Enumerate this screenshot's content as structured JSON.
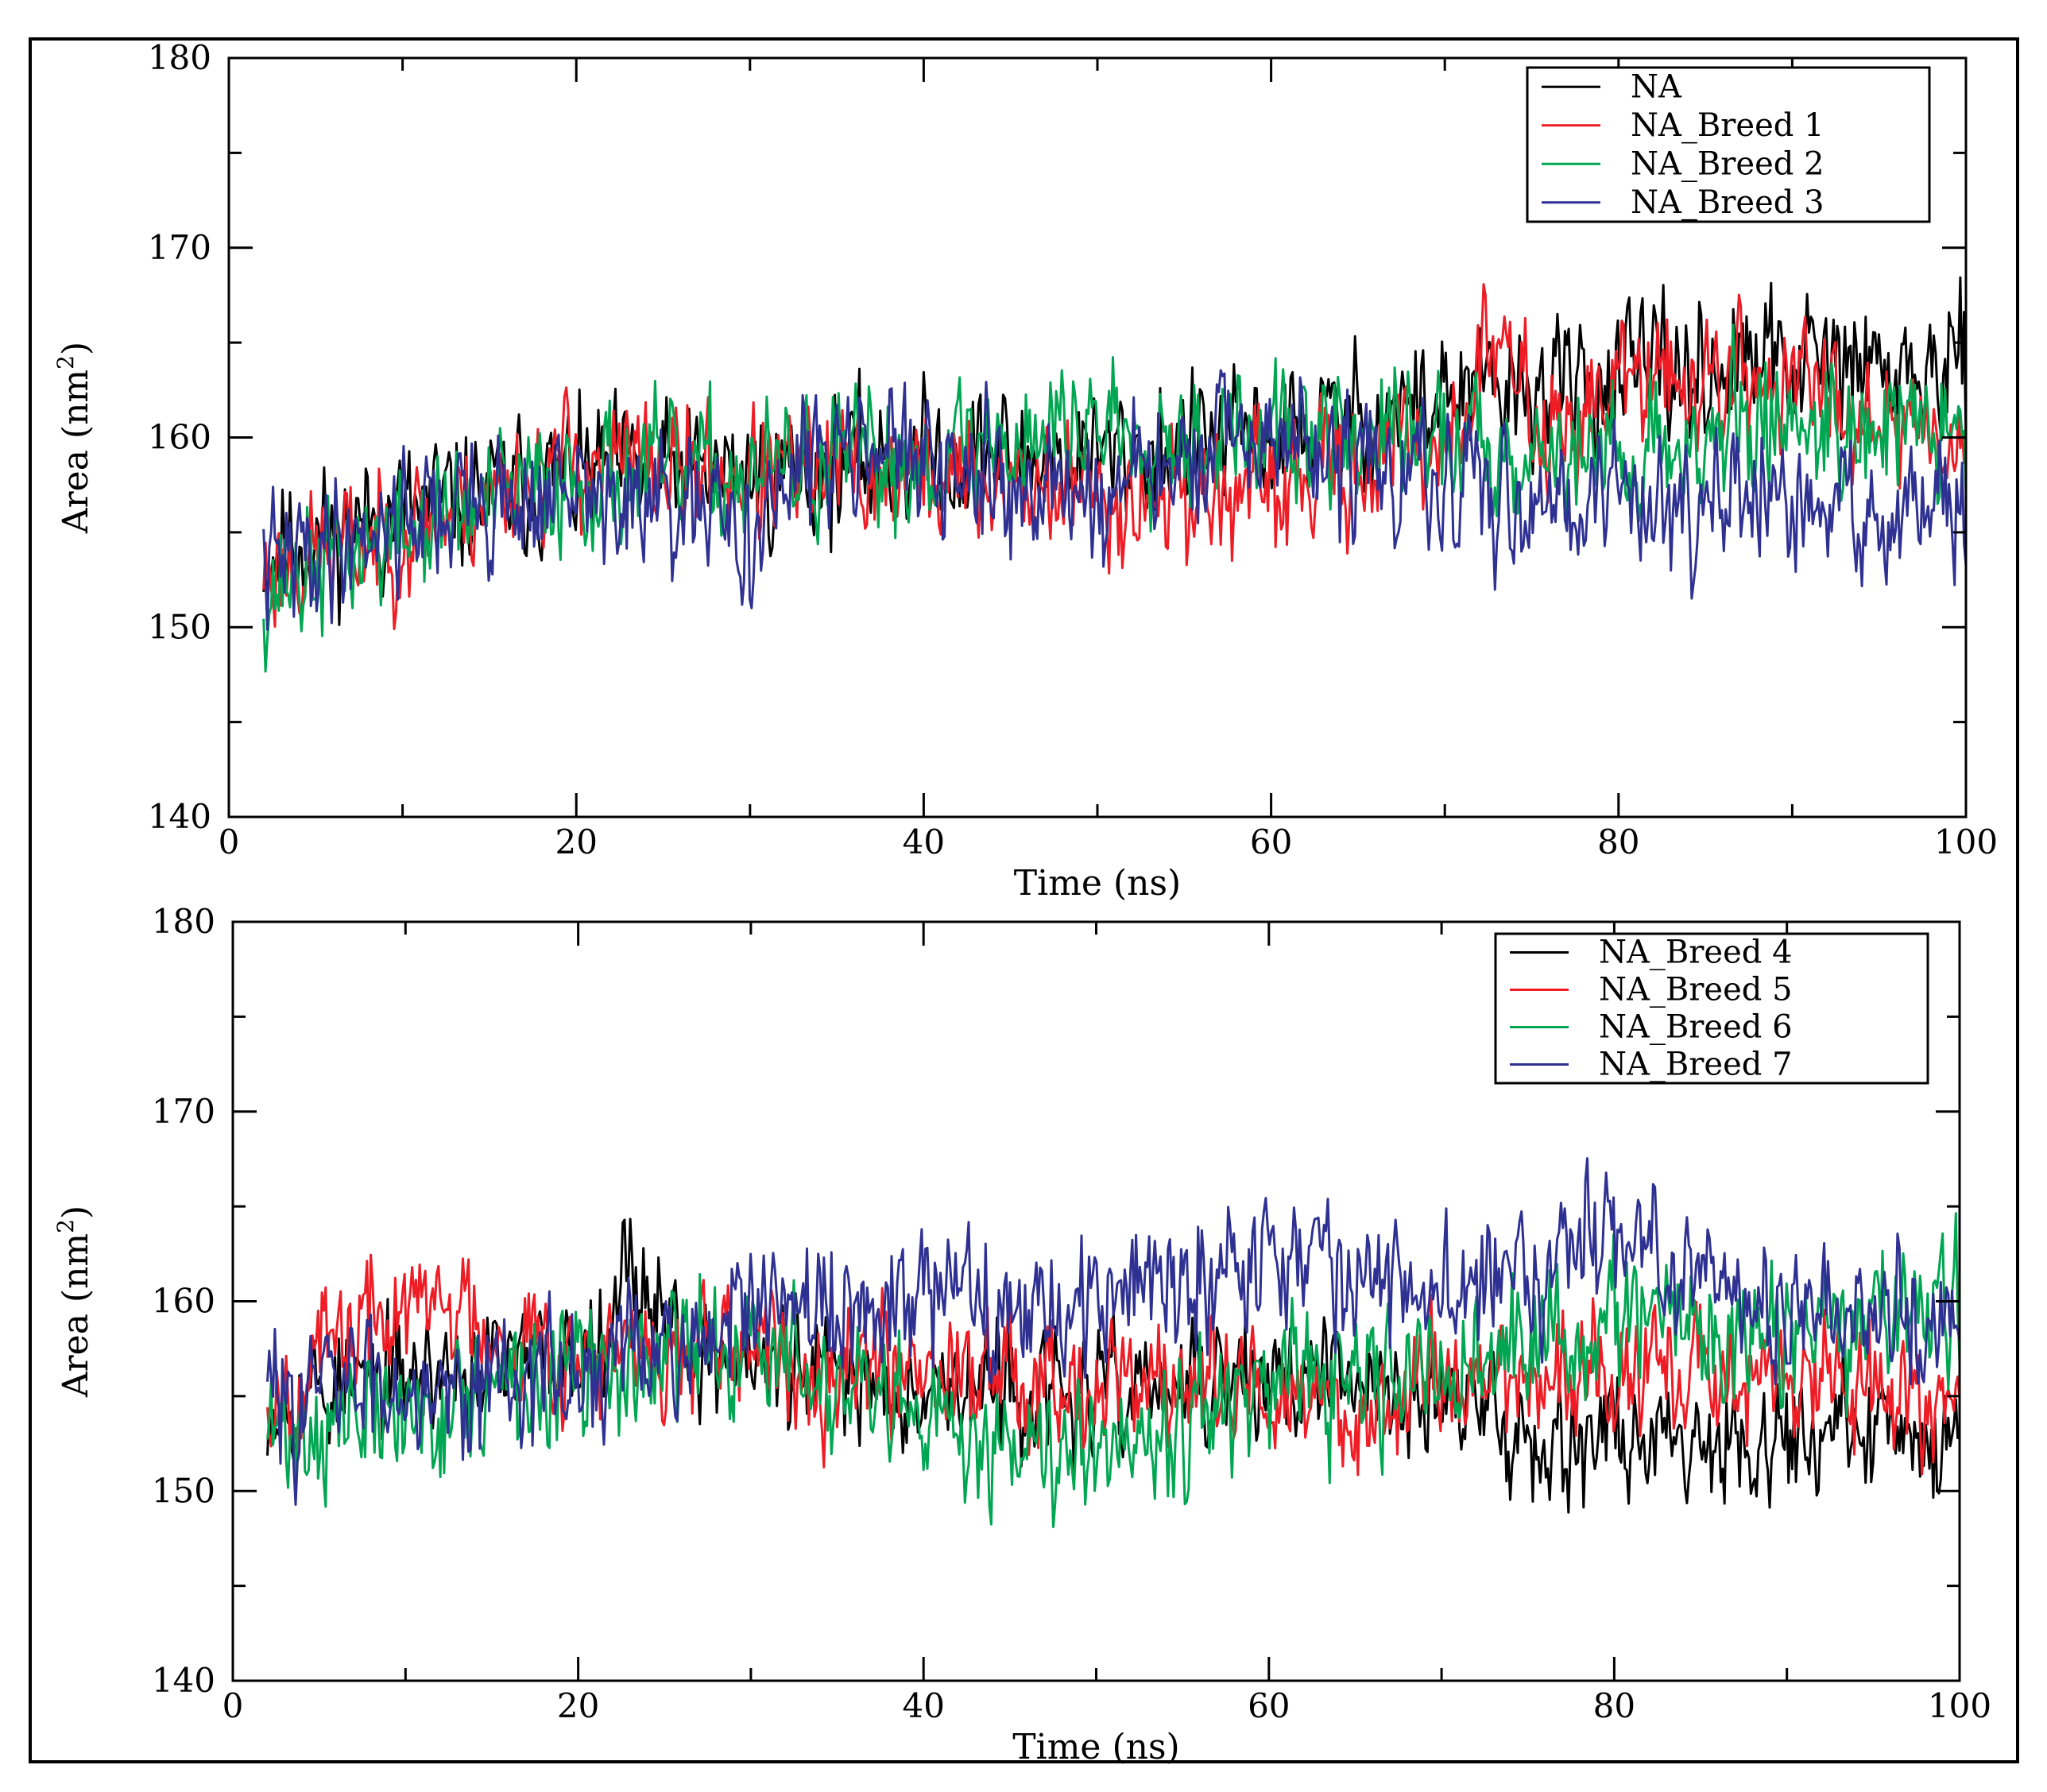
{
  "chart_data": [
    {
      "type": "line",
      "xlabel": "Time (ns)",
      "ylabel_main": "Area (nm",
      "ylabel_sup": "2",
      "ylabel_close": ")",
      "xlim": [
        0,
        100
      ],
      "ylim": [
        140,
        180
      ],
      "x_ticks": [
        "0",
        "20",
        "40",
        "60",
        "80",
        "100"
      ],
      "y_ticks": [
        "140",
        "150",
        "160",
        "170",
        "180"
      ],
      "legend_position": "top-right",
      "series": [
        {
          "name": "NA",
          "color": "#000000",
          "profile": [
            [
              2,
              154
            ],
            [
              10,
              156
            ],
            [
              20,
              158
            ],
            [
              30,
              158
            ],
            [
              40,
              159
            ],
            [
              50,
              159
            ],
            [
              60,
              160
            ],
            [
              70,
              162
            ],
            [
              80,
              163
            ],
            [
              90,
              164
            ],
            [
              100,
              163
            ]
          ],
          "amp": 2.6,
          "seed": 11
        },
        {
          "name": "NA_Breed 1",
          "color": "#ee1c25",
          "profile": [
            [
              2,
              153
            ],
            [
              10,
              155
            ],
            [
              20,
              159
            ],
            [
              30,
              158
            ],
            [
              40,
              158
            ],
            [
              50,
              157
            ],
            [
              60,
              157
            ],
            [
              70,
              160
            ],
            [
              73,
              165
            ],
            [
              76,
              160
            ],
            [
              80,
              163
            ],
            [
              90,
              163
            ],
            [
              100,
              160
            ]
          ],
          "amp": 2.5,
          "seed": 23
        },
        {
          "name": "NA_Breed 2",
          "color": "#00a651",
          "profile": [
            [
              2,
              152
            ],
            [
              10,
              155
            ],
            [
              20,
              158
            ],
            [
              30,
              158
            ],
            [
              40,
              159
            ],
            [
              50,
              161
            ],
            [
              60,
              160
            ],
            [
              70,
              160
            ],
            [
              80,
              159
            ],
            [
              90,
              161
            ],
            [
              100,
              160
            ]
          ],
          "amp": 2.6,
          "seed": 37
        },
        {
          "name": "NA_Breed 3",
          "color": "#2e3192",
          "profile": [
            [
              2,
              153
            ],
            [
              10,
              156
            ],
            [
              20,
              157
            ],
            [
              30,
              155
            ],
            [
              36,
              161
            ],
            [
              40,
              158
            ],
            [
              50,
              157
            ],
            [
              60,
              160
            ],
            [
              70,
              157
            ],
            [
              80,
              157
            ],
            [
              90,
              156
            ],
            [
              100,
              156
            ]
          ],
          "amp": 2.6,
          "seed": 41
        }
      ]
    },
    {
      "type": "line",
      "xlabel": "Time (ns)",
      "ylabel_main": "Area (nm",
      "ylabel_sup": "2",
      "ylabel_close": ")",
      "xlim": [
        0,
        100
      ],
      "ylim": [
        140,
        180
      ],
      "x_ticks": [
        "0",
        "20",
        "40",
        "60",
        "80",
        "100"
      ],
      "y_ticks": [
        "140",
        "150",
        "160",
        "170",
        "180"
      ],
      "legend_position": "top-right",
      "series": [
        {
          "name": "NA_Breed 4",
          "color": "#000000",
          "profile": [
            [
              2,
              155
            ],
            [
              10,
              156
            ],
            [
              20,
              157
            ],
            [
              23,
              162
            ],
            [
              27,
              157
            ],
            [
              35,
              156
            ],
            [
              50,
              155
            ],
            [
              60,
              156
            ],
            [
              70,
              155
            ],
            [
              75,
              153
            ],
            [
              85,
              153
            ],
            [
              100,
              153
            ]
          ],
          "amp": 2.3,
          "seed": 53
        },
        {
          "name": "NA_Breed 5",
          "color": "#ee1c25",
          "profile": [
            [
              2,
              155
            ],
            [
              8,
              159
            ],
            [
              12,
              160
            ],
            [
              20,
              157
            ],
            [
              30,
              157
            ],
            [
              40,
              157
            ],
            [
              50,
              156
            ],
            [
              60,
              155
            ],
            [
              65,
              154
            ],
            [
              70,
              156
            ],
            [
              80,
              156
            ],
            [
              90,
              156
            ],
            [
              100,
              155
            ]
          ],
          "amp": 2.4,
          "seed": 67
        },
        {
          "name": "NA_Breed 6",
          "color": "#00a651",
          "profile": [
            [
              2,
              153
            ],
            [
              10,
              154
            ],
            [
              20,
              156
            ],
            [
              30,
              158
            ],
            [
              35,
              155
            ],
            [
              40,
              153
            ],
            [
              50,
              153
            ],
            [
              60,
              155
            ],
            [
              70,
              156
            ],
            [
              80,
              159
            ],
            [
              90,
              158
            ],
            [
              100,
              160
            ]
          ],
          "amp": 2.6,
          "seed": 71
        },
        {
          "name": "NA_Breed 7",
          "color": "#2e3192",
          "profile": [
            [
              2,
              155
            ],
            [
              10,
              156
            ],
            [
              20,
              156
            ],
            [
              30,
              159
            ],
            [
              40,
              160
            ],
            [
              50,
              160
            ],
            [
              60,
              163
            ],
            [
              70,
              160
            ],
            [
              80,
              164
            ],
            [
              85,
              161
            ],
            [
              90,
              160
            ],
            [
              100,
              159
            ]
          ],
          "amp": 2.6,
          "seed": 83
        }
      ]
    }
  ]
}
